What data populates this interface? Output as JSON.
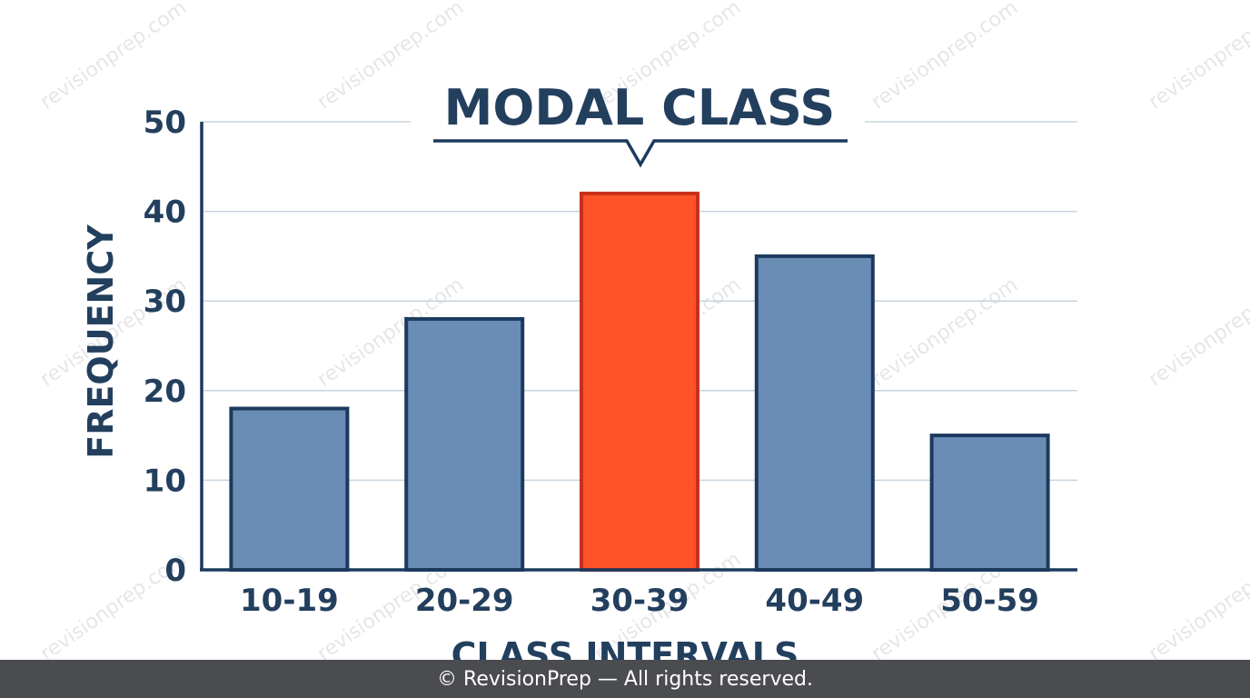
{
  "chart_data": {
    "type": "bar",
    "title": "MODAL CLASS",
    "xlabel": "CLASS INTERVALS",
    "ylabel": "FREQUENCY",
    "categories": [
      "10-19",
      "20-29",
      "30-39",
      "40-49",
      "50-59"
    ],
    "values": [
      18,
      28,
      42,
      35,
      15
    ],
    "ylim": [
      0,
      50
    ],
    "yticks": [
      0,
      10,
      20,
      30,
      40,
      50
    ],
    "grid": true,
    "highlight_category": "30-39",
    "colors": {
      "bar": "#6a8db5",
      "bar_stroke": "#1c3a5e",
      "highlight": "#ff5228",
      "highlight_stroke": "#c8301a",
      "text": "#233f5e",
      "grid": "#c9d3dc"
    }
  },
  "watermark": "revisionprep.com",
  "footer": {
    "text": "© RevisionPrep — All rights reserved."
  }
}
